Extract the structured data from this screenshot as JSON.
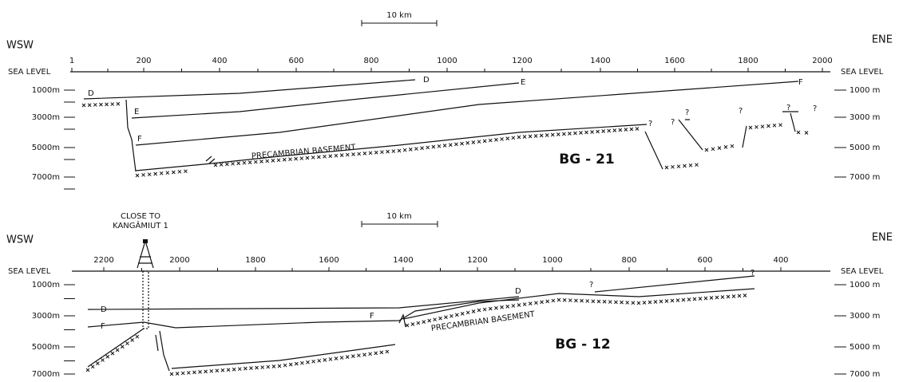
{
  "sections": [
    {
      "id": "BG - 21",
      "scale_bar": "10 km",
      "left_direction": "WSW",
      "right_direction": "ENE",
      "sea_level_left": "SEA LEVEL",
      "sea_level_right": "SEA LEVEL",
      "shotpoints": [
        "1",
        "200",
        "400",
        "600",
        "800",
        "1000",
        "1200",
        "1400",
        "1600",
        "1800",
        "2000"
      ],
      "depths_left": [
        "1000m",
        "3000m",
        "5000m",
        "7000m"
      ],
      "depths_right": [
        "1000 m",
        "3000 m",
        "5000 m",
        "7000 m"
      ],
      "horizons": [
        "D",
        "D",
        "E",
        "E",
        "F",
        "F"
      ],
      "basement": "PRECAMBRIAN BASEMENT",
      "queries": [
        "?",
        "?",
        "?",
        "?",
        "?",
        "?"
      ]
    },
    {
      "id": "BG - 12",
      "scale_bar": "10 km",
      "left_direction": "WSW",
      "right_direction": "ENE",
      "sea_level_left": "SEA LEVEL",
      "sea_level_right": "SEA LEVEL",
      "well": [
        "CLOSE TO",
        "KANGÂMIUT 1"
      ],
      "shotpoints": [
        "2200",
        "2000",
        "1800",
        "1600",
        "1400",
        "1200",
        "1000",
        "800",
        "600",
        "400"
      ],
      "depths_left": [
        "1000m",
        "3000m",
        "5000m",
        "7000m"
      ],
      "depths_right": [
        "1000 m",
        "3000 m",
        "5000 m",
        "7000 m"
      ],
      "horizons": [
        "D",
        "F",
        "D",
        "F"
      ],
      "basement": "PRECAMBRIAN BASEMENT",
      "queries": [
        "?",
        "?"
      ]
    }
  ]
}
